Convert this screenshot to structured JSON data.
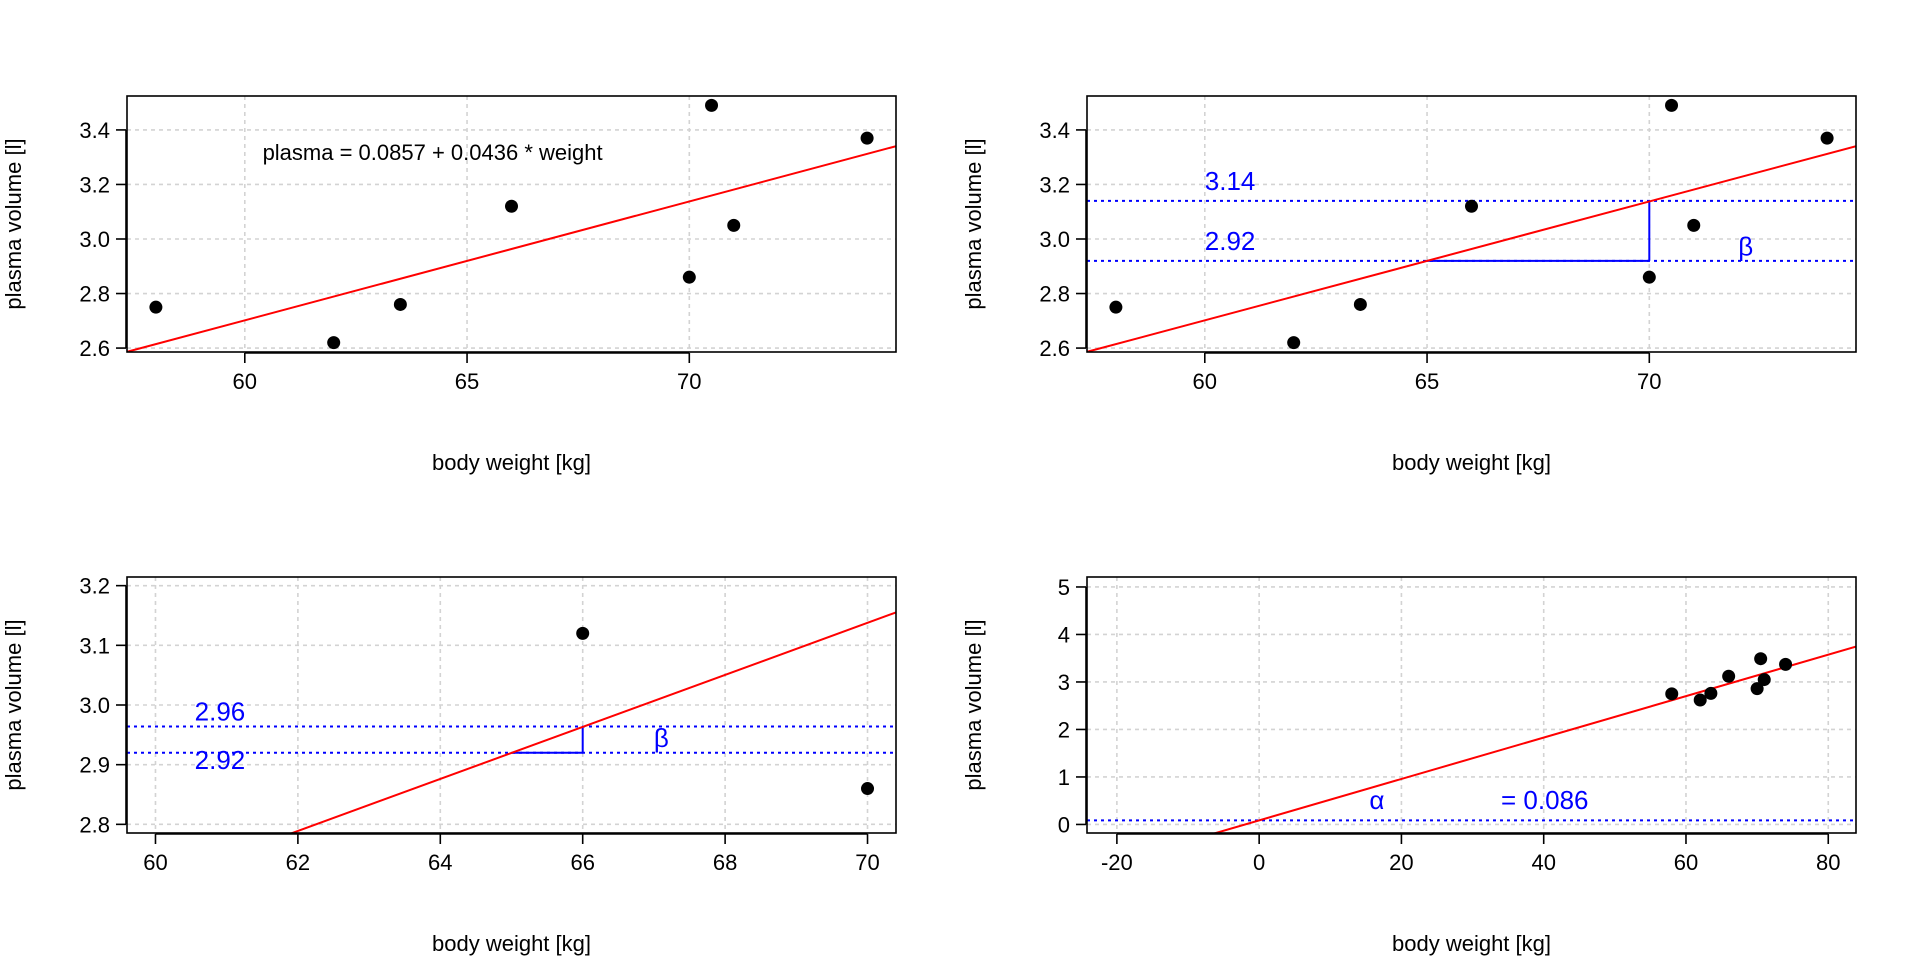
{
  "chart_data": [
    {
      "type": "scatter",
      "xlabel": "body weight [kg]",
      "ylabel": "plasma volume [l]",
      "xlim": [
        57.35,
        74.65
      ],
      "ylim": [
        2.5856,
        3.5244
      ],
      "xticks": [
        60,
        65,
        70
      ],
      "yticks": [
        2.6,
        2.8,
        3.0,
        3.2,
        3.4
      ],
      "tick_format": "int",
      "ytick_decimals": 1,
      "grid": true,
      "points": [
        {
          "x": 58.0,
          "y": 2.75
        },
        {
          "x": 70.0,
          "y": 2.86
        },
        {
          "x": 74.0,
          "y": 3.37
        },
        {
          "x": 63.5,
          "y": 2.76
        },
        {
          "x": 62.0,
          "y": 2.62
        },
        {
          "x": 70.5,
          "y": 3.49
        },
        {
          "x": 71.0,
          "y": 3.05
        },
        {
          "x": 66.0,
          "y": 3.12
        }
      ],
      "regression": {
        "intercept": 0.0857,
        "slope": 0.0436,
        "color": "#ff0000"
      },
      "hlines": [],
      "segments": [],
      "annotations": [
        {
          "text": "plasma = 0.0857 + 0.0436 * weight",
          "x": 60.4,
          "y": 3.29,
          "color": "#000000",
          "size": 22
        }
      ]
    },
    {
      "type": "scatter",
      "xlabel": "body weight [kg]",
      "ylabel": "plasma volume [l]",
      "xlim": [
        57.35,
        74.65
      ],
      "ylim": [
        2.5856,
        3.5244
      ],
      "xticks": [
        60,
        65,
        70
      ],
      "yticks": [
        2.6,
        2.8,
        3.0,
        3.2,
        3.4
      ],
      "tick_format": "int",
      "ytick_decimals": 1,
      "grid": true,
      "points": [
        {
          "x": 58.0,
          "y": 2.75
        },
        {
          "x": 70.0,
          "y": 2.86
        },
        {
          "x": 74.0,
          "y": 3.37
        },
        {
          "x": 63.5,
          "y": 2.76
        },
        {
          "x": 62.0,
          "y": 2.62
        },
        {
          "x": 70.5,
          "y": 3.49
        },
        {
          "x": 71.0,
          "y": 3.05
        },
        {
          "x": 66.0,
          "y": 3.12
        }
      ],
      "regression": {
        "intercept": 0.0857,
        "slope": 0.0436,
        "color": "#ff0000"
      },
      "hlines": [
        {
          "y": 3.14,
          "color": "#0000ff"
        },
        {
          "y": 2.92,
          "color": "#0000ff"
        }
      ],
      "segments": [
        {
          "x1": 65,
          "y1": 2.92,
          "x2": 70,
          "y2": 2.92,
          "color": "#0000ff"
        },
        {
          "x1": 70,
          "y1": 2.92,
          "x2": 70,
          "y2": 3.14,
          "color": "#0000ff"
        }
      ],
      "annotations": [
        {
          "text": "3.14",
          "x": 60.0,
          "y": 3.18,
          "color": "#0000ff",
          "size": 26
        },
        {
          "text": "2.92",
          "x": 60.0,
          "y": 2.96,
          "color": "#0000ff",
          "size": 26
        },
        {
          "text": "β",
          "x": 72.0,
          "y": 2.94,
          "color": "#0000ff",
          "size": 26,
          "serif": true
        }
      ]
    },
    {
      "type": "scatter",
      "xlabel": "body weight [kg]",
      "ylabel": "plasma volume [l]",
      "xlim": [
        59.6,
        70.4
      ],
      "ylim": [
        2.7855,
        3.2145
      ],
      "xticks": [
        60,
        62,
        64,
        66,
        68,
        70
      ],
      "yticks": [
        2.8,
        2.9,
        3.0,
        3.1,
        3.2
      ],
      "tick_format": "int",
      "ytick_decimals": 1,
      "grid": true,
      "points": [
        {
          "x": 70.0,
          "y": 2.86
        },
        {
          "x": 66.0,
          "y": 3.12
        }
      ],
      "regression": {
        "intercept": 0.0857,
        "slope": 0.0436,
        "color": "#ff0000"
      },
      "hlines": [
        {
          "y": 2.964,
          "color": "#0000ff"
        },
        {
          "y": 2.92,
          "color": "#0000ff"
        }
      ],
      "segments": [
        {
          "x1": 65,
          "y1": 2.92,
          "x2": 66,
          "y2": 2.92,
          "color": "#0000ff"
        },
        {
          "x1": 66,
          "y1": 2.92,
          "x2": 66,
          "y2": 2.964,
          "color": "#0000ff"
        }
      ],
      "annotations": [
        {
          "text": "2.96",
          "x": 60.55,
          "y": 2.974,
          "color": "#0000ff",
          "size": 26
        },
        {
          "text": "2.92",
          "x": 60.55,
          "y": 2.893,
          "color": "#0000ff",
          "size": 26
        },
        {
          "text": "β",
          "x": 67.0,
          "y": 2.93,
          "color": "#0000ff",
          "size": 26,
          "serif": true
        }
      ]
    },
    {
      "type": "scatter",
      "xlabel": "body weight [kg]",
      "ylabel": "plasma volume [l]",
      "xlim": [
        -24.2,
        83.9
      ],
      "ylim": [
        -0.18,
        5.21
      ],
      "xticks": [
        -20,
        0,
        20,
        40,
        60,
        80
      ],
      "yticks": [
        0,
        1,
        2,
        3,
        4,
        5
      ],
      "tick_format": "int",
      "ytick_decimals": 0,
      "grid": true,
      "points": [
        {
          "x": 58.0,
          "y": 2.75
        },
        {
          "x": 70.0,
          "y": 2.86
        },
        {
          "x": 74.0,
          "y": 3.37
        },
        {
          "x": 63.5,
          "y": 2.76
        },
        {
          "x": 62.0,
          "y": 2.62
        },
        {
          "x": 70.5,
          "y": 3.49
        },
        {
          "x": 71.0,
          "y": 3.05
        },
        {
          "x": 66.0,
          "y": 3.12
        }
      ],
      "regression": {
        "intercept": 0.0857,
        "slope": 0.0436,
        "color": "#ff0000"
      },
      "hlines": [
        {
          "y": 0.086,
          "color": "#0000ff"
        }
      ],
      "segments": [],
      "annotations": [
        {
          "text": "α",
          "x": 15.5,
          "y": 0.33,
          "color": "#0000ff",
          "size": 26,
          "serif": true
        },
        {
          "text": "= 0.086",
          "x": 34.0,
          "y": 0.33,
          "color": "#0000ff",
          "size": 26
        }
      ]
    }
  ]
}
